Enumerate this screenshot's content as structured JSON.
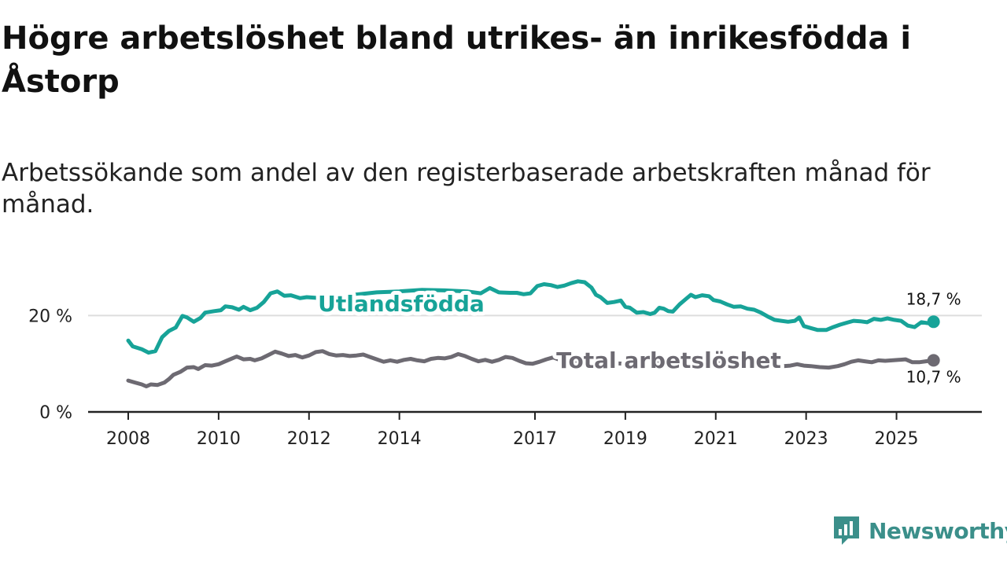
{
  "title": "Högre arbetslöshet bland utrikes- än inrikesfödda i Åstorp",
  "subtitle": "Arbetssökande som andel av den registerbaserade arbetskraften månad för månad.",
  "brand": {
    "name": "Newsworthy"
  },
  "colors": {
    "foreign": "#17a398",
    "total": "#6d6a72",
    "axis": "#222222",
    "grid": "#dddddd"
  },
  "chart_data": {
    "type": "line",
    "title": "Högre arbetslöshet bland utrikes- än inrikesfödda i Åstorp",
    "xlabel": "",
    "ylabel": "",
    "x_range": [
      2008,
      2026
    ],
    "ylim": [
      0,
      30
    ],
    "y_ticks": [
      0,
      20
    ],
    "y_tick_labels": [
      "0 %",
      "20 %"
    ],
    "x_ticks": [
      2008,
      2010,
      2012,
      2014,
      2017,
      2019,
      2021,
      2023,
      2025
    ],
    "x_tick_labels": [
      "2008",
      "2010",
      "2012",
      "2014",
      "2017",
      "2019",
      "2021",
      "2023",
      "2025"
    ],
    "series": [
      {
        "name": "Utlandsfödda",
        "color": "#17a398",
        "end_label": "18,7 %",
        "points": [
          [
            2008.0,
            14.8
          ],
          [
            2008.1,
            13.6
          ],
          [
            2008.3,
            13.0
          ],
          [
            2008.45,
            12.3
          ],
          [
            2008.6,
            12.6
          ],
          [
            2008.75,
            15.5
          ],
          [
            2008.9,
            16.8
          ],
          [
            2009.05,
            17.5
          ],
          [
            2009.2,
            19.9
          ],
          [
            2009.3,
            19.6
          ],
          [
            2009.45,
            18.7
          ],
          [
            2009.6,
            19.5
          ],
          [
            2009.7,
            20.6
          ],
          [
            2009.9,
            20.9
          ],
          [
            2010.05,
            21.1
          ],
          [
            2010.15,
            21.9
          ],
          [
            2010.3,
            21.7
          ],
          [
            2010.45,
            21.2
          ],
          [
            2010.55,
            21.8
          ],
          [
            2010.7,
            21.1
          ],
          [
            2010.85,
            21.6
          ],
          [
            2011.0,
            22.8
          ],
          [
            2011.15,
            24.6
          ],
          [
            2011.3,
            25.0
          ],
          [
            2011.45,
            24.1
          ],
          [
            2011.6,
            24.2
          ],
          [
            2011.8,
            23.6
          ],
          [
            2011.95,
            23.8
          ],
          [
            2012.1,
            23.7
          ],
          [
            2012.25,
            23.6
          ],
          [
            2012.6,
            24.1
          ],
          [
            2013.0,
            24.3
          ],
          [
            2013.5,
            24.8
          ],
          [
            2014.0,
            25.0
          ],
          [
            2014.5,
            25.3
          ],
          [
            2015.0,
            25.2
          ],
          [
            2015.5,
            25.0
          ],
          [
            2015.8,
            24.6
          ],
          [
            2016.0,
            25.7
          ],
          [
            2016.2,
            24.8
          ],
          [
            2016.45,
            24.7
          ],
          [
            2016.6,
            24.7
          ],
          [
            2016.75,
            24.4
          ],
          [
            2016.9,
            24.6
          ],
          [
            2017.05,
            26.1
          ],
          [
            2017.2,
            26.5
          ],
          [
            2017.35,
            26.3
          ],
          [
            2017.5,
            25.9
          ],
          [
            2017.65,
            26.2
          ],
          [
            2017.8,
            26.7
          ],
          [
            2017.95,
            27.1
          ],
          [
            2018.1,
            26.9
          ],
          [
            2018.25,
            25.8
          ],
          [
            2018.35,
            24.3
          ],
          [
            2018.45,
            23.8
          ],
          [
            2018.6,
            22.6
          ],
          [
            2018.75,
            22.8
          ],
          [
            2018.9,
            23.1
          ],
          [
            2019.0,
            21.8
          ],
          [
            2019.1,
            21.6
          ],
          [
            2019.25,
            20.6
          ],
          [
            2019.4,
            20.7
          ],
          [
            2019.55,
            20.3
          ],
          [
            2019.65,
            20.6
          ],
          [
            2019.75,
            21.6
          ],
          [
            2019.85,
            21.4
          ],
          [
            2019.95,
            20.9
          ],
          [
            2020.05,
            20.8
          ],
          [
            2020.2,
            22.3
          ],
          [
            2020.35,
            23.5
          ],
          [
            2020.45,
            24.3
          ],
          [
            2020.55,
            23.8
          ],
          [
            2020.7,
            24.2
          ],
          [
            2020.85,
            24.0
          ],
          [
            2020.95,
            23.2
          ],
          [
            2021.1,
            22.9
          ],
          [
            2021.25,
            22.3
          ],
          [
            2021.4,
            21.8
          ],
          [
            2021.55,
            21.9
          ],
          [
            2021.7,
            21.4
          ],
          [
            2021.85,
            21.2
          ],
          [
            2022.0,
            20.6
          ],
          [
            2022.15,
            19.8
          ],
          [
            2022.3,
            19.1
          ],
          [
            2022.45,
            18.9
          ],
          [
            2022.6,
            18.7
          ],
          [
            2022.75,
            18.9
          ],
          [
            2022.85,
            19.6
          ],
          [
            2022.95,
            17.8
          ],
          [
            2023.1,
            17.4
          ],
          [
            2023.25,
            17.0
          ],
          [
            2023.45,
            17.0
          ],
          [
            2023.6,
            17.6
          ],
          [
            2023.75,
            18.1
          ],
          [
            2023.9,
            18.5
          ],
          [
            2024.05,
            18.9
          ],
          [
            2024.2,
            18.8
          ],
          [
            2024.35,
            18.6
          ],
          [
            2024.5,
            19.3
          ],
          [
            2024.65,
            19.1
          ],
          [
            2024.8,
            19.4
          ],
          [
            2024.95,
            19.1
          ],
          [
            2025.1,
            18.9
          ],
          [
            2025.25,
            17.9
          ],
          [
            2025.4,
            17.6
          ],
          [
            2025.55,
            18.6
          ],
          [
            2025.7,
            18.4
          ],
          [
            2025.82,
            18.7
          ]
        ]
      },
      {
        "name": "Total arbetslöshet",
        "color": "#6d6a72",
        "end_label": "10,7 %",
        "points": [
          [
            2008.0,
            6.5
          ],
          [
            2008.15,
            6.1
          ],
          [
            2008.3,
            5.7
          ],
          [
            2008.4,
            5.3
          ],
          [
            2008.5,
            5.7
          ],
          [
            2008.65,
            5.6
          ],
          [
            2008.8,
            6.1
          ],
          [
            2008.9,
            6.8
          ],
          [
            2009.0,
            7.7
          ],
          [
            2009.15,
            8.3
          ],
          [
            2009.3,
            9.2
          ],
          [
            2009.45,
            9.3
          ],
          [
            2009.55,
            8.9
          ],
          [
            2009.7,
            9.7
          ],
          [
            2009.85,
            9.6
          ],
          [
            2010.0,
            9.9
          ],
          [
            2010.15,
            10.5
          ],
          [
            2010.3,
            11.1
          ],
          [
            2010.4,
            11.5
          ],
          [
            2010.55,
            10.9
          ],
          [
            2010.7,
            11.0
          ],
          [
            2010.8,
            10.7
          ],
          [
            2010.95,
            11.1
          ],
          [
            2011.1,
            11.8
          ],
          [
            2011.25,
            12.5
          ],
          [
            2011.4,
            12.1
          ],
          [
            2011.55,
            11.6
          ],
          [
            2011.7,
            11.8
          ],
          [
            2011.85,
            11.3
          ],
          [
            2012.0,
            11.7
          ],
          [
            2012.15,
            12.4
          ],
          [
            2012.3,
            12.6
          ],
          [
            2012.45,
            12.0
          ],
          [
            2012.6,
            11.7
          ],
          [
            2012.75,
            11.8
          ],
          [
            2012.9,
            11.6
          ],
          [
            2013.05,
            11.7
          ],
          [
            2013.2,
            11.9
          ],
          [
            2013.35,
            11.4
          ],
          [
            2013.5,
            10.9
          ],
          [
            2013.65,
            10.4
          ],
          [
            2013.8,
            10.7
          ],
          [
            2013.95,
            10.4
          ],
          [
            2014.1,
            10.8
          ],
          [
            2014.25,
            11.0
          ],
          [
            2014.4,
            10.7
          ],
          [
            2014.55,
            10.5
          ],
          [
            2014.7,
            11.0
          ],
          [
            2014.85,
            11.2
          ],
          [
            2015.0,
            11.1
          ],
          [
            2015.15,
            11.4
          ],
          [
            2015.3,
            12.0
          ],
          [
            2015.45,
            11.6
          ],
          [
            2015.6,
            11.0
          ],
          [
            2015.75,
            10.5
          ],
          [
            2015.9,
            10.8
          ],
          [
            2016.05,
            10.4
          ],
          [
            2016.2,
            10.8
          ],
          [
            2016.35,
            11.4
          ],
          [
            2016.5,
            11.2
          ],
          [
            2016.65,
            10.6
          ],
          [
            2016.8,
            10.1
          ],
          [
            2016.95,
            10.0
          ],
          [
            2017.1,
            10.4
          ],
          [
            2017.25,
            10.9
          ],
          [
            2017.4,
            11.3
          ],
          [
            2017.55,
            10.8
          ],
          [
            2017.7,
            10.6
          ],
          [
            2017.85,
            10.5
          ],
          [
            2018.0,
            10.6
          ],
          [
            2018.5,
            10.2
          ],
          [
            2019.0,
            10.0
          ],
          [
            2019.5,
            9.8
          ],
          [
            2020.0,
            10.5
          ],
          [
            2020.5,
            10.6
          ],
          [
            2021.0,
            10.2
          ],
          [
            2021.5,
            9.8
          ],
          [
            2022.0,
            9.5
          ],
          [
            2022.3,
            9.4
          ],
          [
            2022.5,
            9.5
          ],
          [
            2022.65,
            9.6
          ],
          [
            2022.8,
            9.9
          ],
          [
            2022.95,
            9.6
          ],
          [
            2023.1,
            9.5
          ],
          [
            2023.3,
            9.3
          ],
          [
            2023.5,
            9.2
          ],
          [
            2023.7,
            9.5
          ],
          [
            2023.85,
            9.9
          ],
          [
            2024.0,
            10.4
          ],
          [
            2024.15,
            10.7
          ],
          [
            2024.3,
            10.5
          ],
          [
            2024.45,
            10.3
          ],
          [
            2024.6,
            10.7
          ],
          [
            2024.75,
            10.6
          ],
          [
            2024.9,
            10.7
          ],
          [
            2025.05,
            10.8
          ],
          [
            2025.2,
            10.9
          ],
          [
            2025.35,
            10.3
          ],
          [
            2025.5,
            10.3
          ],
          [
            2025.65,
            10.5
          ],
          [
            2025.82,
            10.7
          ]
        ]
      }
    ]
  }
}
